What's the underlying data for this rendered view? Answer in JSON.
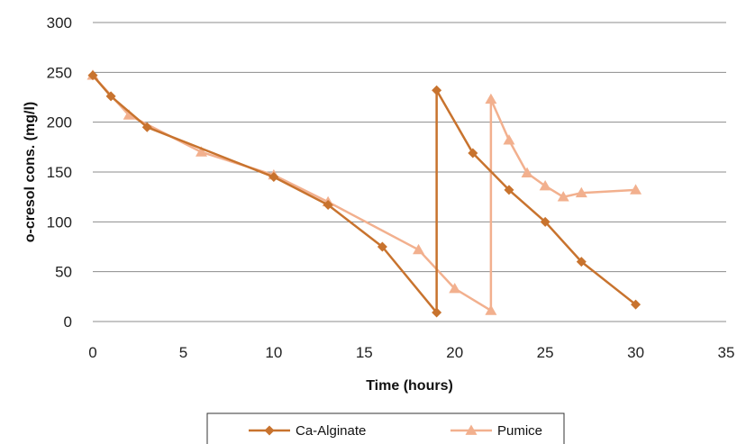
{
  "chart_data": {
    "type": "line",
    "title": "",
    "xlabel": "Time (hours)",
    "ylabel": "o-cresol cons. (mg/l)",
    "xlim": [
      0,
      35
    ],
    "ylim": [
      0,
      300
    ],
    "xticks": [
      "0",
      "5",
      "10",
      "15",
      "20",
      "25",
      "30",
      "35"
    ],
    "yticks": [
      "0",
      "50",
      "100",
      "150",
      "200",
      "250",
      "300"
    ],
    "grid": "horizontal",
    "legend_position": "bottom",
    "series": [
      {
        "name": "Ca-Alginate",
        "color": "#c8732e",
        "marker": "diamond",
        "x": [
          0,
          1,
          3,
          10,
          13,
          16,
          19,
          19,
          21,
          23,
          25,
          27,
          30
        ],
        "y": [
          247,
          226,
          195,
          145,
          117,
          75,
          9,
          232,
          169,
          132,
          100,
          60,
          17
        ]
      },
      {
        "name": "Pumice",
        "color": "#f2b08e",
        "marker": "triangle",
        "x": [
          0,
          2,
          6,
          10,
          13,
          18,
          20,
          22,
          22,
          23,
          24,
          25,
          26,
          27,
          30
        ],
        "y": [
          247,
          207,
          170,
          147,
          120,
          72,
          33,
          11,
          223,
          182,
          149,
          136,
          125,
          129,
          132
        ]
      }
    ]
  }
}
